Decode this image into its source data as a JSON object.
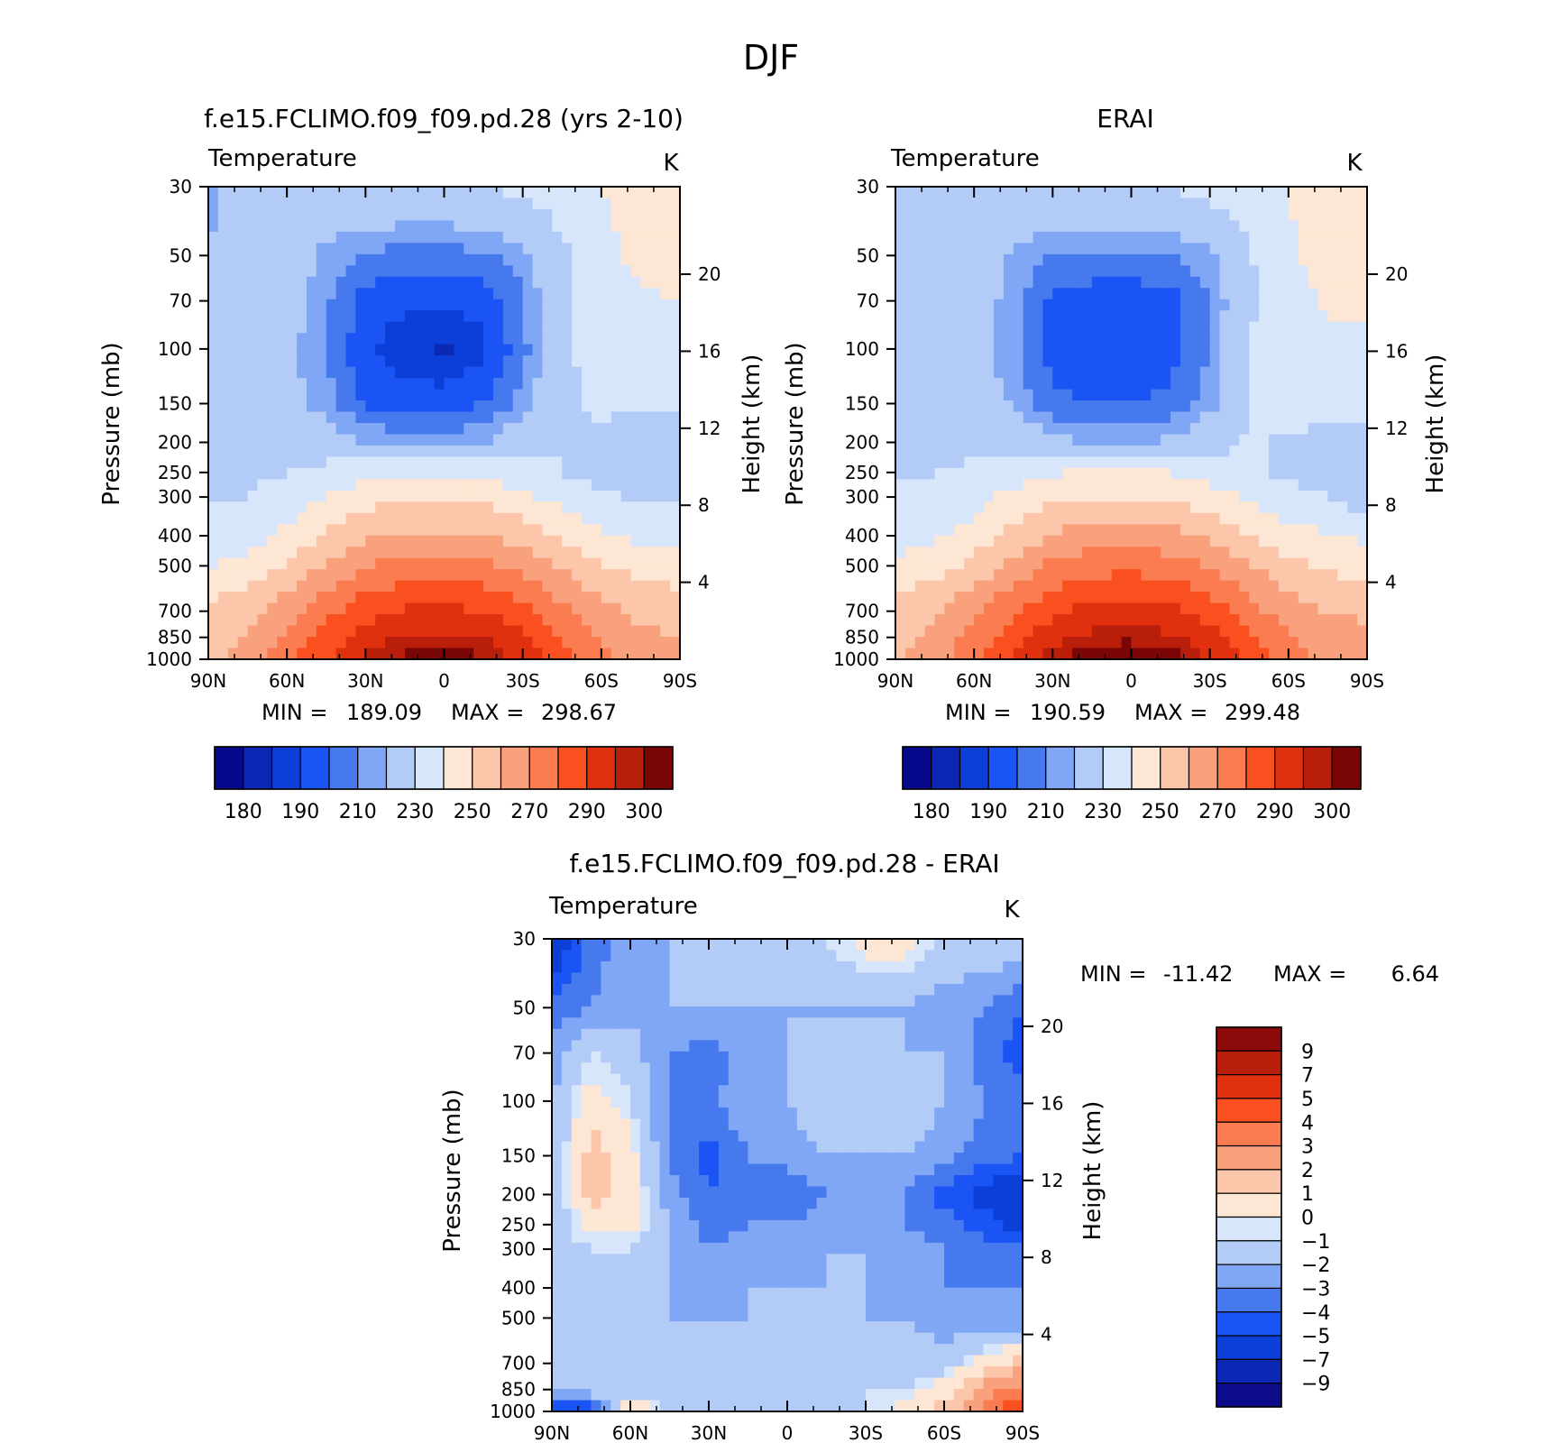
{
  "figure": {
    "title": "DJF",
    "field_label": "Temperature",
    "units": "K",
    "pressure_axis_label": "Pressure (mb)",
    "height_axis_label": "Height (km)"
  },
  "colors": {
    "temp_palette": [
      "#08088c",
      "#0a28b4",
      "#0b3fd8",
      "#1a54f5",
      "#4678ee",
      "#80a7f5",
      "#b3ccf7",
      "#d8e6fb",
      "#fde6d3",
      "#fbc6aa",
      "#f9a07c",
      "#fa7c50",
      "#fa4f1e",
      "#e0300e",
      "#b81e0a",
      "#7a0505"
    ],
    "diff_palette": [
      "#0c0c8a",
      "#0a28b4",
      "#0b3fd8",
      "#1a54f5",
      "#4678ee",
      "#80a7f5",
      "#b3ccf7",
      "#d8e6fb",
      "#fde6d3",
      "#fbc6aa",
      "#f9a07c",
      "#fa7c50",
      "#fa4f1e",
      "#e0300e",
      "#b81e0a",
      "#8c0a0a"
    ]
  },
  "chart_data": [
    {
      "type": "heatmap",
      "panel": "model",
      "title": "f.e15.FCLIMO.f09_f09.pd.28 (yrs 2-10)",
      "subtitle": "Temperature",
      "units": "K",
      "ylabel": "Pressure (mb)",
      "ylabel_right": "Height (km)",
      "x_ticks": [
        "90N",
        "60N",
        "30N",
        "0",
        "30S",
        "60S",
        "90S"
      ],
      "y_ticks": [
        30,
        50,
        70,
        100,
        150,
        200,
        250,
        300,
        400,
        500,
        700,
        850,
        1000
      ],
      "ylim": [
        1000,
        30
      ],
      "height_ticks": [
        4,
        8,
        12,
        16,
        20
      ],
      "stats": {
        "min_label": "MIN =",
        "min": "189.09",
        "max_label": "MAX =",
        "max": "298.67"
      },
      "colorbar": {
        "labels": [
          "180",
          "190",
          "210",
          "230",
          "250",
          "270",
          "290",
          "300"
        ]
      },
      "levels_k": [
        {
          "p": 30,
          "v": [
            209,
            212,
            215,
            218,
            219,
            219,
            219,
            220,
            222,
            225,
            230,
            232,
            232
          ]
        },
        {
          "p": 50,
          "v": [
            210,
            213,
            215,
            208,
            204,
            203,
            203,
            204,
            208,
            218,
            228,
            232,
            233
          ]
        },
        {
          "p": 70,
          "v": [
            212,
            214,
            214,
            206,
            198,
            196,
            196,
            197,
            204,
            217,
            226,
            229,
            230
          ]
        },
        {
          "p": 100,
          "v": [
            213,
            213,
            212,
            205,
            196,
            192,
            189,
            194,
            203,
            218,
            224,
            224,
            224
          ]
        },
        {
          "p": 150,
          "v": [
            214,
            214,
            213,
            207,
            199,
            198,
            198,
            200,
            207,
            218,
            222,
            222,
            221
          ]
        },
        {
          "p": 200,
          "v": [
            215,
            215,
            215,
            214,
            210,
            207,
            207,
            210,
            215,
            220,
            217,
            215,
            214
          ]
        },
        {
          "p": 250,
          "v": [
            217,
            218,
            220,
            223,
            227,
            229,
            229,
            228,
            224,
            220,
            216,
            214,
            214
          ]
        },
        {
          "p": 300,
          "v": [
            219,
            220,
            224,
            231,
            236,
            238,
            238,
            237,
            232,
            226,
            221,
            219,
            218
          ]
        },
        {
          "p": 400,
          "v": [
            223,
            226,
            232,
            241,
            249,
            252,
            252,
            251,
            246,
            238,
            232,
            228,
            226
          ]
        },
        {
          "p": 500,
          "v": [
            230,
            234,
            241,
            251,
            260,
            264,
            265,
            263,
            257,
            249,
            241,
            236,
            234
          ]
        },
        {
          "p": 700,
          "v": [
            242,
            247,
            256,
            267,
            276,
            281,
            282,
            280,
            273,
            262,
            253,
            248,
            246
          ]
        },
        {
          "p": 850,
          "v": [
            245,
            250,
            262,
            274,
            285,
            291,
            292,
            290,
            283,
            270,
            258,
            252,
            250
          ]
        },
        {
          "p": 1000,
          "v": [
            248,
            253,
            266,
            280,
            291,
            297,
            298,
            296,
            288,
            275,
            262,
            255,
            252
          ]
        }
      ]
    },
    {
      "type": "heatmap",
      "panel": "obs",
      "title": "ERAI",
      "subtitle": "Temperature",
      "units": "K",
      "ylabel": "Pressure (mb)",
      "ylabel_right": "Height (km)",
      "x_ticks": [
        "90N",
        "60N",
        "30N",
        "0",
        "30S",
        "60S",
        "90S"
      ],
      "y_ticks": [
        30,
        50,
        70,
        100,
        150,
        200,
        250,
        300,
        400,
        500,
        700,
        850,
        1000
      ],
      "ylim": [
        1000,
        30
      ],
      "height_ticks": [
        4,
        8,
        12,
        16,
        20
      ],
      "stats": {
        "min_label": "MIN =",
        "min": "190.59",
        "max_label": "MAX =",
        "max": "299.48"
      },
      "colorbar": {
        "labels": [
          "180",
          "190",
          "210",
          "230",
          "250",
          "270",
          "290",
          "300"
        ]
      },
      "levels_k": [
        {
          "p": 30,
          "v": [
            212,
            214,
            216,
            219,
            220,
            220,
            220,
            221,
            223,
            226,
            230,
            233,
            234
          ]
        },
        {
          "p": 50,
          "v": [
            213,
            215,
            216,
            209,
            205,
            204,
            204,
            205,
            209,
            219,
            229,
            233,
            234
          ]
        },
        {
          "p": 70,
          "v": [
            214,
            216,
            215,
            207,
            199,
            197,
            197,
            198,
            205,
            218,
            227,
            231,
            232
          ]
        },
        {
          "p": 100,
          "v": [
            215,
            215,
            214,
            206,
            198,
            197,
            197,
            198,
            205,
            220,
            226,
            228,
            228
          ]
        },
        {
          "p": 150,
          "v": [
            216,
            216,
            215,
            209,
            201,
            200,
            200,
            201,
            208,
            220,
            224,
            224,
            223
          ]
        },
        {
          "p": 200,
          "v": [
            217,
            217,
            217,
            216,
            212,
            209,
            209,
            211,
            216,
            221,
            219,
            216,
            215
          ]
        },
        {
          "p": 250,
          "v": [
            219,
            220,
            222,
            225,
            229,
            231,
            231,
            230,
            226,
            222,
            218,
            216,
            215
          ]
        },
        {
          "p": 300,
          "v": [
            221,
            222,
            226,
            233,
            238,
            240,
            240,
            239,
            234,
            228,
            223,
            221,
            212
          ]
        },
        {
          "p": 400,
          "v": [
            225,
            228,
            234,
            243,
            251,
            254,
            254,
            253,
            248,
            240,
            234,
            230,
            228
          ]
        },
        {
          "p": 500,
          "v": [
            232,
            236,
            243,
            253,
            262,
            266,
            267,
            265,
            259,
            251,
            243,
            238,
            236
          ]
        },
        {
          "p": 700,
          "v": [
            244,
            249,
            258,
            269,
            278,
            283,
            284,
            282,
            275,
            264,
            255,
            250,
            248
          ]
        },
        {
          "p": 850,
          "v": [
            247,
            252,
            264,
            276,
            287,
            293,
            294,
            292,
            285,
            272,
            260,
            254,
            252
          ]
        },
        {
          "p": 1000,
          "v": [
            250,
            255,
            268,
            282,
            293,
            299,
            299,
            298,
            290,
            277,
            264,
            257,
            254
          ]
        }
      ]
    },
    {
      "type": "heatmap",
      "panel": "difference",
      "title": "f.e15.FCLIMO.f09_f09.pd.28 - ERAI",
      "subtitle": "Temperature",
      "units": "K",
      "ylabel": "Pressure (mb)",
      "ylabel_right": "Height (km)",
      "x_ticks": [
        "90N",
        "60N",
        "30N",
        "0",
        "30S",
        "60S",
        "90S"
      ],
      "y_ticks": [
        30,
        50,
        70,
        100,
        150,
        200,
        250,
        300,
        400,
        500,
        700,
        850,
        1000
      ],
      "ylim": [
        1000,
        30
      ],
      "height_ticks": [
        4,
        8,
        12,
        16,
        20
      ],
      "stats": {
        "min_label": "MIN =",
        "min": "-11.42",
        "max_label": "MAX =",
        "max": "6.64"
      },
      "colorbar": {
        "labels": [
          "9",
          "7",
          "5",
          "4",
          "3",
          "2",
          "1",
          "0",
          "-1",
          "-2",
          "-3",
          "-4",
          "-5",
          "-7",
          "-9"
        ]
      },
      "levels_k": [
        {
          "p": 30,
          "v": [
            -6,
            -3,
            -2,
            -1.5,
            -0.5,
            -0.5,
            -0.5,
            -0.5,
            0.5,
            0.5,
            -0.5,
            -0.5,
            -0.5
          ]
        },
        {
          "p": 50,
          "v": [
            -3,
            -2.5,
            -2,
            -1.5,
            -1.5,
            -1.5,
            -1.5,
            -1.5,
            -1.5,
            -1.5,
            -2,
            -2.5,
            -3.5
          ]
        },
        {
          "p": 70,
          "v": [
            -2,
            -0.5,
            -1,
            -2.5,
            -3,
            -2,
            -1.5,
            -1.5,
            -1.5,
            -1.5,
            -1.5,
            -3,
            -4
          ]
        },
        {
          "p": 100,
          "v": [
            -1.5,
            0.5,
            -0.5,
            -2.5,
            -3,
            -1.5,
            -1.5,
            -0.5,
            -0.5,
            -0.5,
            -1.5,
            -2.5,
            -3
          ]
        },
        {
          "p": 150,
          "v": [
            -1.5,
            1.5,
            0.5,
            -2.5,
            -4,
            -2.5,
            -2,
            -1.5,
            -1.5,
            -1.5,
            -2,
            -3,
            -3.5
          ]
        },
        {
          "p": 200,
          "v": [
            -1.5,
            1.5,
            0.5,
            -2,
            -3.5,
            -2.5,
            -3.5,
            -2.5,
            -2,
            -2.5,
            -4,
            -5,
            -6
          ]
        },
        {
          "p": 250,
          "v": [
            -1.5,
            0.5,
            0.5,
            -1.5,
            -3,
            -2.5,
            -2.5,
            -2,
            -1.5,
            -2.5,
            -3,
            -4,
            -5
          ]
        },
        {
          "p": 300,
          "v": [
            -1,
            -0.5,
            -0.5,
            -1.5,
            -2.5,
            -2,
            -2,
            -1.5,
            -1.5,
            -2,
            -2.5,
            -3,
            -3
          ]
        },
        {
          "p": 400,
          "v": [
            -1.5,
            -1.5,
            -1.5,
            -1.5,
            -2,
            -1.5,
            -1.5,
            -1.5,
            -1.5,
            -2,
            -2.5,
            -2.5,
            -2.5
          ]
        },
        {
          "p": 500,
          "v": [
            -1.5,
            -1.5,
            -1.5,
            -1.5,
            -1.5,
            -1.5,
            -1.5,
            -1.5,
            -1.5,
            -1.5,
            -2,
            -2.5,
            -2.5
          ]
        },
        {
          "p": 700,
          "v": [
            -1.5,
            -1.5,
            -1.5,
            -1.5,
            -1.5,
            -1.5,
            -1.5,
            -1.5,
            -0.5,
            -1,
            -1,
            0.5,
            1.5
          ]
        },
        {
          "p": 850,
          "v": [
            -0.5,
            -0.5,
            -1,
            -1.5,
            -1.5,
            -1.5,
            -1.5,
            -1,
            -0.5,
            -0.5,
            0.5,
            2.5,
            3.5
          ]
        },
        {
          "p": 1000,
          "v": [
            -6,
            -5,
            1.5,
            -0.5,
            -1.5,
            -1.5,
            -1.5,
            -0.5,
            -0.5,
            0.5,
            1.5,
            3.5,
            5
          ]
        }
      ]
    }
  ]
}
